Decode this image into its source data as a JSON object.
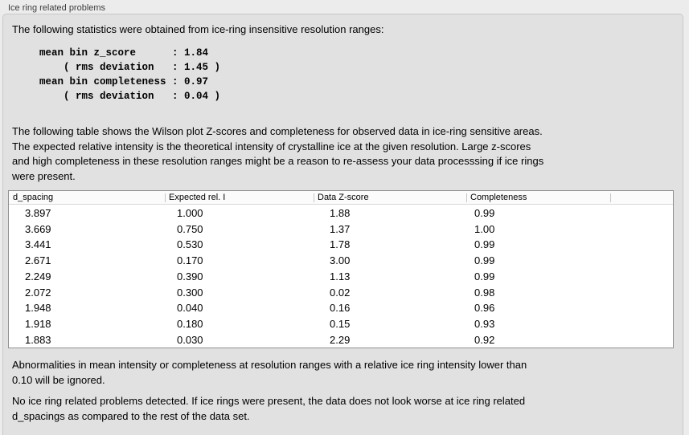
{
  "panel": {
    "label": "Ice ring related problems"
  },
  "intro": "The following statistics were obtained from ice-ring insensitive resolution ranges:",
  "stats_block": {
    "lines": [
      "mean bin z_score      : 1.84",
      "    ( rms deviation   : 1.45 )",
      "mean bin completeness : 0.97",
      "    ( rms deviation   : 0.04 )"
    ],
    "mean_bin_z_score": "1.84",
    "z_score_rms_deviation": "1.45",
    "mean_bin_completeness": "0.97",
    "completeness_rms_deviation": "0.04"
  },
  "description": {
    "lines": [
      "The following table shows the Wilson plot Z-scores and completeness for observed data in ice-ring sensitive areas.",
      "The expected relative intensity is the theoretical intensity of crystalline ice at the given resolution. Large z-scores",
      "and high completeness in these resolution ranges might be a reason to re-assess your data processsing if ice rings",
      "were present."
    ]
  },
  "table": {
    "columns": [
      "d_spacing",
      "Expected rel. I",
      "Data Z-score",
      "Completeness"
    ],
    "rows": [
      [
        "3.897",
        "1.000",
        "1.88",
        "0.99"
      ],
      [
        "3.669",
        "0.750",
        "1.37",
        "1.00"
      ],
      [
        "3.441",
        "0.530",
        "1.78",
        "0.99"
      ],
      [
        "2.671",
        "0.170",
        "3.00",
        "0.99"
      ],
      [
        "2.249",
        "0.390",
        "1.13",
        "0.99"
      ],
      [
        "2.072",
        "0.300",
        "0.02",
        "0.98"
      ],
      [
        "1.948",
        "0.040",
        "0.16",
        "0.96"
      ],
      [
        "1.918",
        "0.180",
        "0.15",
        "0.93"
      ],
      [
        "1.883",
        "0.030",
        "2.29",
        "0.92"
      ]
    ]
  },
  "notes": {
    "ignore_lines": [
      "Abnormalities in mean intensity or completeness at resolution ranges with a relative ice ring intensity lower than",
      "0.10 will be ignored."
    ],
    "conclusion_lines": [
      "No ice ring related problems detected. If ice rings were present, the data does not look worse at ice ring related",
      "d_spacings as compared to the rest of the data set."
    ]
  },
  "colors": {
    "outer_background": "#ececec",
    "panel_background": "#e1e1e1",
    "panel_border": "#c8c8c8",
    "table_border": "#8f8f8f",
    "table_header_background": "#fbfbfb",
    "header_divider": "#c6c6c6",
    "table_body_background": "#ffffff",
    "text": "#000000",
    "label_text": "#3c3c3c"
  }
}
